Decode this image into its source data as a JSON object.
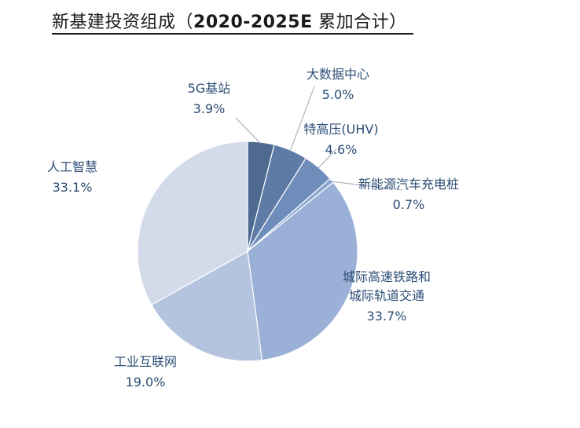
{
  "title": {
    "text_a": "新基建投资组成（",
    "text_b": "2020-2025E",
    "text_c": "  累加合计）"
  },
  "chart_data": {
    "type": "pie",
    "title": "新基建投资组成（2020-2025E  累加合计）",
    "slices": [
      {
        "label": "5G基站",
        "value": 3.9,
        "pct_label": "3.9%",
        "color": "#4e6a90"
      },
      {
        "label": "大数据中心",
        "value": 5.0,
        "pct_label": "5.0%",
        "color": "#5e7ba6"
      },
      {
        "label": "特高压(UHV)",
        "value": 4.6,
        "pct_label": "4.6%",
        "color": "#6e8dbb"
      },
      {
        "label": "新能源汽车充电桩",
        "value": 0.7,
        "pct_label": "0.7%",
        "color": "#8aa6cf"
      },
      {
        "label": "城际高速铁路和城际轨道交通",
        "value": 33.7,
        "pct_label": "33.7%",
        "color": "#9bb0d6"
      },
      {
        "label": "工业互联网",
        "value": 19.0,
        "pct_label": "19.0%",
        "color": "#b4c4de"
      },
      {
        "label": "人工智慧",
        "value": 33.1,
        "pct_label": "33.1%",
        "color": "#d3dbeb"
      }
    ],
    "label_lines": [
      {
        "name": [
          "5G基站"
        ],
        "pct": "3.9%"
      },
      {
        "name": [
          "大数据中心"
        ],
        "pct": "5.0%"
      },
      {
        "name": [
          "特高压(UHV)"
        ],
        "pct": "4.6%"
      },
      {
        "name": [
          "新能源汽车充电桩"
        ],
        "pct": "0.7%"
      },
      {
        "name": [
          "城际高速铁路和",
          "城际轨道交通"
        ],
        "pct": "33.7%"
      },
      {
        "name": [
          "工业互联网"
        ],
        "pct": "19.0%"
      },
      {
        "name": [
          "人工智慧"
        ],
        "pct": "33.1%"
      }
    ]
  }
}
